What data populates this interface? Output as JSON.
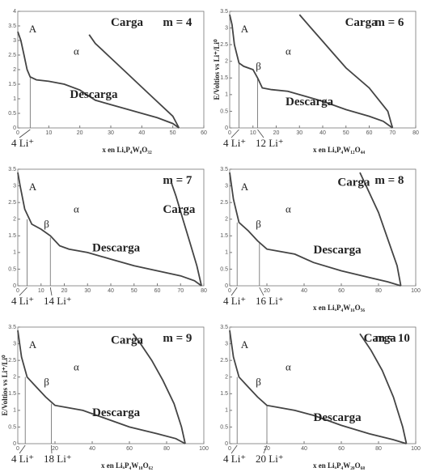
{
  "chart_data": [
    {
      "type": "line",
      "xlim": [
        0,
        60
      ],
      "xticks": [
        0,
        10,
        20,
        30,
        40,
        50,
        60
      ],
      "ylim": [
        0,
        4
      ],
      "yticks": [
        0,
        0.5,
        1,
        1.5,
        2,
        2.5,
        3,
        3.5,
        4
      ],
      "xlabel": "x en LiₓP₄W₈O₃₂",
      "annotations": {
        "m": "m = 4",
        "A": "A",
        "alpha": "α"
      },
      "series": [
        {
          "name": "Descarga",
          "color": "#444444",
          "x": [
            0,
            1,
            2,
            3,
            4,
            6,
            10,
            15,
            20,
            25,
            30,
            35,
            40,
            45,
            50,
            52
          ],
          "values": [
            3.3,
            3.0,
            2.5,
            2.0,
            1.75,
            1.65,
            1.6,
            1.5,
            1.3,
            0.95,
            0.8,
            0.65,
            0.5,
            0.35,
            0.15,
            0
          ]
        },
        {
          "name": "Carga",
          "color": "#444444",
          "x": [
            52,
            50,
            45,
            40,
            35,
            30,
            25,
            23
          ],
          "values": [
            0,
            0.4,
            0.9,
            1.4,
            1.9,
            2.4,
            2.9,
            3.2
          ]
        }
      ],
      "markers": [
        {
          "x": 4,
          "y": 1.75,
          "label": "4 Li⁺"
        }
      ]
    },
    {
      "type": "line",
      "xlim": [
        0,
        80
      ],
      "xticks": [
        0,
        10,
        20,
        30,
        40,
        50,
        60,
        70,
        80
      ],
      "ylim": [
        0,
        3.5
      ],
      "yticks": [
        0,
        0.5,
        1,
        1.5,
        2,
        2.5,
        3,
        3.5
      ],
      "xlabel": "x en LiₓP₄W₁₂O₄₄",
      "ylabel": "E/Voltios vs Li⁺/Li⁰",
      "annotations": {
        "m": "m = 6",
        "A": "A",
        "alpha": "α",
        "beta": "β"
      },
      "series": [
        {
          "name": "Descarga",
          "color": "#444444",
          "x": [
            0,
            1,
            2,
            4,
            6,
            10,
            12,
            14,
            18,
            25,
            30,
            40,
            50,
            60,
            66,
            70
          ],
          "values": [
            3.4,
            3.1,
            2.5,
            1.95,
            1.85,
            1.75,
            1.5,
            1.2,
            1.15,
            1.1,
            1.0,
            0.8,
            0.55,
            0.35,
            0.2,
            0
          ]
        },
        {
          "name": "Carga",
          "color": "#444444",
          "x": [
            70,
            68,
            60,
            50,
            45,
            40,
            35,
            30
          ],
          "values": [
            0,
            0.5,
            1.2,
            1.8,
            2.2,
            2.6,
            3.0,
            3.4
          ]
        }
      ],
      "markers": [
        {
          "x": 4,
          "y": 1.95,
          "label": "4 Li⁺"
        },
        {
          "x": 12,
          "y": 1.5,
          "label": "12 Li⁺"
        }
      ]
    },
    {
      "type": "line",
      "xlim": [
        0,
        80
      ],
      "xticks": [
        0,
        10,
        20,
        30,
        40,
        50,
        60,
        70,
        80
      ],
      "ylim": [
        0,
        3.5
      ],
      "yticks": [
        0,
        0.5,
        1,
        1.5,
        2,
        2.5,
        3,
        3.5
      ],
      "annotations": {
        "m": "m = 7",
        "A": "A",
        "alpha": "α",
        "beta": "β"
      },
      "series": [
        {
          "name": "Descarga",
          "color": "#444444",
          "x": [
            0,
            1,
            3,
            6,
            10,
            14,
            18,
            22,
            30,
            40,
            50,
            60,
            70,
            76,
            79
          ],
          "values": [
            3.4,
            3.0,
            2.3,
            1.85,
            1.7,
            1.5,
            1.2,
            1.1,
            1.0,
            0.8,
            0.6,
            0.45,
            0.3,
            0.15,
            0
          ]
        },
        {
          "name": "Carga",
          "color": "#444444",
          "x": [
            79,
            77,
            74,
            71,
            68,
            66
          ],
          "values": [
            0,
            0.6,
            1.3,
            2.0,
            2.7,
            3.1
          ]
        }
      ],
      "markers": [
        {
          "x": 4,
          "y": 2.0,
          "label": "4 Li⁺"
        },
        {
          "x": 14,
          "y": 1.45,
          "label": "14 Li⁺"
        }
      ]
    },
    {
      "type": "line",
      "xlim": [
        0,
        100
      ],
      "xticks": [
        0,
        20,
        40,
        60,
        80,
        100
      ],
      "ylim": [
        0,
        3.5
      ],
      "yticks": [
        0,
        0.5,
        1,
        1.5,
        2,
        2.5,
        3,
        3.5
      ],
      "xlabel": "x en LiₓP₄W₁₆O₅₆",
      "annotations": {
        "m": "m = 8",
        "A": "A",
        "alpha": "α",
        "beta": "β"
      },
      "series": [
        {
          "name": "Descarga",
          "color": "#444444",
          "x": [
            0,
            2,
            5,
            10,
            15,
            20,
            25,
            35,
            45,
            60,
            75,
            85,
            92
          ],
          "values": [
            3.4,
            2.6,
            1.9,
            1.65,
            1.35,
            1.1,
            1.05,
            0.95,
            0.7,
            0.45,
            0.25,
            0.12,
            0
          ]
        },
        {
          "name": "Carga",
          "color": "#444444",
          "x": [
            92,
            90,
            85,
            80,
            75,
            70
          ],
          "values": [
            0,
            0.6,
            1.4,
            2.2,
            2.8,
            3.4
          ]
        }
      ],
      "markers": [
        {
          "x": 4,
          "y": 1.9,
          "label": "4 Li⁺"
        },
        {
          "x": 16,
          "y": 1.3,
          "label": "16 Li⁺"
        }
      ]
    },
    {
      "type": "line",
      "xlim": [
        0,
        100
      ],
      "xticks": [
        0,
        20,
        40,
        60,
        80,
        100
      ],
      "ylim": [
        0,
        3.5
      ],
      "yticks": [
        0,
        0.5,
        1,
        1.5,
        2,
        2.5,
        3,
        3.5
      ],
      "xlabel": "x en LiₓP₄W₁₈O₆₂",
      "ylabel": "E/Voltios vs Li⁺/Li⁰",
      "annotations": {
        "m": "m = 9",
        "A": "A",
        "alpha": "α",
        "beta": "β"
      },
      "series": [
        {
          "name": "Descarga",
          "color": "#444444",
          "x": [
            0,
            2,
            5,
            10,
            15,
            20,
            25,
            35,
            45,
            60,
            75,
            85,
            90
          ],
          "values": [
            3.4,
            2.6,
            2.0,
            1.7,
            1.4,
            1.15,
            1.1,
            1.0,
            0.8,
            0.5,
            0.3,
            0.15,
            0
          ]
        },
        {
          "name": "Carga",
          "color": "#444444",
          "x": [
            90,
            88,
            84,
            78,
            72,
            66,
            62
          ],
          "values": [
            0,
            0.5,
            1.2,
            1.9,
            2.5,
            3.0,
            3.3
          ]
        }
      ],
      "markers": [
        {
          "x": 4,
          "y": 2.0,
          "label": "4 Li⁺"
        },
        {
          "x": 18,
          "y": 1.2,
          "label": "18 Li⁺"
        }
      ]
    },
    {
      "type": "line",
      "xlim": [
        0,
        100
      ],
      "xticks": [
        0,
        20,
        40,
        60,
        80,
        100
      ],
      "ylim": [
        0,
        3.5
      ],
      "yticks": [
        0,
        0.5,
        1,
        1.5,
        2,
        2.5,
        3,
        3.5
      ],
      "xlabel": "x en LiₓP₄W₂₀O₆₈",
      "annotations": {
        "m": "m = 10",
        "A": "A",
        "alpha": "α",
        "beta": "β"
      },
      "series": [
        {
          "name": "Descarga",
          "color": "#444444",
          "x": [
            0,
            2,
            5,
            10,
            15,
            20,
            25,
            35,
            45,
            60,
            75,
            88,
            95
          ],
          "values": [
            3.4,
            2.6,
            2.0,
            1.7,
            1.4,
            1.15,
            1.1,
            1.0,
            0.85,
            0.55,
            0.3,
            0.12,
            0
          ]
        },
        {
          "name": "Carga",
          "color": "#444444",
          "x": [
            95,
            93,
            88,
            82,
            76,
            70
          ],
          "values": [
            0,
            0.5,
            1.4,
            2.2,
            2.8,
            3.3
          ]
        }
      ],
      "markers": [
        {
          "x": 4,
          "y": 2.0,
          "label": "4 Li⁺"
        },
        {
          "x": 20,
          "y": 1.15,
          "label": "20 Li⁺"
        }
      ]
    }
  ]
}
